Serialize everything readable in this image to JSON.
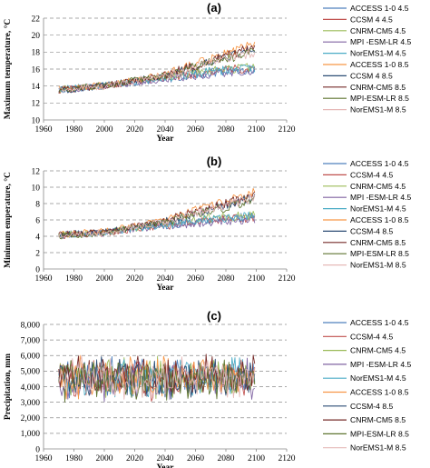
{
  "chart_data": [
    {
      "panel": "(a)",
      "type": "line",
      "title": "",
      "xlabel": "Year",
      "ylabel": "Maximum temperature, °C",
      "xlim": [
        1960,
        2120
      ],
      "ylim": [
        10,
        22
      ],
      "xticks": [
        1960,
        1980,
        2000,
        2020,
        2040,
        2060,
        2080,
        2100,
        2120
      ],
      "yticks": [
        10,
        12,
        14,
        16,
        18,
        20,
        22
      ],
      "y_format": "plain",
      "grid": "horizontal dashed",
      "legend_position": "right",
      "x_range_data": [
        1970,
        2099
      ],
      "series": [
        {
          "name": "ACCESS 1-0 4.5",
          "color": "#4f81bd",
          "keyframes": [
            [
              1970,
              13.6
            ],
            [
              2000,
              14.0
            ],
            [
              2040,
              14.9
            ],
            [
              2070,
              15.6
            ],
            [
              2099,
              16.0
            ]
          ]
        },
        {
          "name": "CCSM 4 4.5",
          "color": "#c0504d",
          "keyframes": [
            [
              1970,
              13.5
            ],
            [
              2000,
              14.0
            ],
            [
              2040,
              15.0
            ],
            [
              2070,
              15.7
            ],
            [
              2099,
              16.2
            ]
          ]
        },
        {
          "name": "CNRM-CM5 4.5",
          "color": "#9bbb59",
          "keyframes": [
            [
              1970,
              13.6
            ],
            [
              2000,
              14.0
            ],
            [
              2040,
              15.0
            ],
            [
              2070,
              15.8
            ],
            [
              2099,
              16.3
            ]
          ]
        },
        {
          "name": "MPI -ESM-LR 4.5",
          "color": "#8064a2",
          "keyframes": [
            [
              1970,
              13.5
            ],
            [
              2000,
              14.0
            ],
            [
              2040,
              14.8
            ],
            [
              2070,
              15.4
            ],
            [
              2099,
              15.8
            ]
          ]
        },
        {
          "name": "NorEMS1-M 4.5",
          "color": "#4bacc6",
          "keyframes": [
            [
              1970,
              13.6
            ],
            [
              2000,
              14.1
            ],
            [
              2040,
              15.0
            ],
            [
              2070,
              15.7
            ],
            [
              2099,
              16.1
            ]
          ]
        },
        {
          "name": "ACCESS 1-0  8.5",
          "color": "#f79646",
          "keyframes": [
            [
              1970,
              13.6
            ],
            [
              2000,
              14.1
            ],
            [
              2040,
              15.4
            ],
            [
              2070,
              17.2
            ],
            [
              2099,
              19.0
            ]
          ]
        },
        {
          "name": "CCSM 4 8.5",
          "color": "#2c4d75",
          "keyframes": [
            [
              1970,
              13.5
            ],
            [
              2000,
              14.0
            ],
            [
              2040,
              15.3
            ],
            [
              2070,
              16.8
            ],
            [
              2099,
              18.3
            ]
          ]
        },
        {
          "name": "CNRM-CM5 8.5",
          "color": "#772c2a",
          "keyframes": [
            [
              1970,
              13.5
            ],
            [
              2000,
              14.0
            ],
            [
              2040,
              15.3
            ],
            [
              2070,
              17.0
            ],
            [
              2099,
              18.6
            ]
          ]
        },
        {
          "name": "MPI-ESM-LR 8.5",
          "color": "#5f7530",
          "keyframes": [
            [
              1970,
              13.6
            ],
            [
              2000,
              14.1
            ],
            [
              2040,
              15.2
            ],
            [
              2070,
              16.8
            ],
            [
              2099,
              18.0
            ]
          ]
        },
        {
          "name": "NorEMS1-M 8.5",
          "color": "#e6b9b8",
          "keyframes": [
            [
              1970,
              13.6
            ],
            [
              2000,
              14.0
            ],
            [
              2040,
              15.2
            ],
            [
              2070,
              16.7
            ],
            [
              2099,
              18.0
            ]
          ]
        }
      ]
    },
    {
      "panel": "(b)",
      "type": "line",
      "title": "",
      "xlabel": "Year",
      "ylabel": "Minimum emperature, °C",
      "xlim": [
        1960,
        2120
      ],
      "ylim": [
        0,
        12
      ],
      "xticks": [
        1960,
        1980,
        2000,
        2020,
        2040,
        2060,
        2080,
        2100,
        2120
      ],
      "yticks": [
        0,
        2,
        4,
        6,
        8,
        10,
        12
      ],
      "y_format": "plain",
      "grid": "horizontal dashed",
      "legend_position": "right",
      "x_range_data": [
        1970,
        2099
      ],
      "series": [
        {
          "name": "ACCESS 1-0 4.5",
          "color": "#4f81bd",
          "keyframes": [
            [
              1970,
              4.2
            ],
            [
              2000,
              4.5
            ],
            [
              2040,
              5.4
            ],
            [
              2070,
              6.0
            ],
            [
              2099,
              6.4
            ]
          ]
        },
        {
          "name": "CCSM-4 4.5",
          "color": "#c0504d",
          "keyframes": [
            [
              1970,
              4.1
            ],
            [
              2000,
              4.4
            ],
            [
              2040,
              5.3
            ],
            [
              2070,
              5.9
            ],
            [
              2099,
              6.3
            ]
          ]
        },
        {
          "name": "CNRM-CM5 4.5",
          "color": "#9bbb59",
          "keyframes": [
            [
              1970,
              4.2
            ],
            [
              2000,
              4.5
            ],
            [
              2040,
              5.5
            ],
            [
              2070,
              6.2
            ],
            [
              2099,
              6.6
            ]
          ]
        },
        {
          "name": "MPI -ESM-LR 4.5",
          "color": "#8064a2",
          "keyframes": [
            [
              1970,
              4.0
            ],
            [
              2000,
              4.4
            ],
            [
              2040,
              5.2
            ],
            [
              2070,
              5.8
            ],
            [
              2099,
              6.1
            ]
          ]
        },
        {
          "name": "NorEMS1-M 4.5",
          "color": "#4bacc6",
          "keyframes": [
            [
              1970,
              4.1
            ],
            [
              2000,
              4.5
            ],
            [
              2040,
              5.4
            ],
            [
              2070,
              6.1
            ],
            [
              2099,
              6.5
            ]
          ]
        },
        {
          "name": "ACCESS 1-0  8.5",
          "color": "#f79646",
          "keyframes": [
            [
              1970,
              4.2
            ],
            [
              2000,
              4.6
            ],
            [
              2040,
              6.0
            ],
            [
              2070,
              7.7
            ],
            [
              2099,
              9.4
            ]
          ]
        },
        {
          "name": "CCSM-4 8.5",
          "color": "#2c4d75",
          "keyframes": [
            [
              1970,
              4.1
            ],
            [
              2000,
              4.5
            ],
            [
              2040,
              5.8
            ],
            [
              2070,
              7.3
            ],
            [
              2099,
              8.8
            ]
          ]
        },
        {
          "name": "CNRM-CM5 8.5",
          "color": "#772c2a",
          "keyframes": [
            [
              1970,
              4.2
            ],
            [
              2000,
              4.5
            ],
            [
              2040,
              5.9
            ],
            [
              2070,
              7.5
            ],
            [
              2099,
              9.0
            ]
          ]
        },
        {
          "name": "MPI-ESM-LR 8.5",
          "color": "#5f7530",
          "keyframes": [
            [
              1970,
              4.0
            ],
            [
              2000,
              4.4
            ],
            [
              2040,
              5.7
            ],
            [
              2070,
              7.1
            ],
            [
              2099,
              8.4
            ]
          ]
        },
        {
          "name": "NorEMS1-M 8.5",
          "color": "#e6b9b8",
          "keyframes": [
            [
              1970,
              4.1
            ],
            [
              2000,
              4.5
            ],
            [
              2040,
              5.8
            ],
            [
              2070,
              7.3
            ],
            [
              2099,
              8.7
            ]
          ]
        }
      ]
    },
    {
      "panel": "(c)",
      "type": "line",
      "title": "",
      "xlabel": "Year",
      "ylabel": "Precipitation, mm",
      "xlim": [
        1960,
        2120
      ],
      "ylim": [
        0,
        8000
      ],
      "xticks": [
        1960,
        1980,
        2000,
        2020,
        2040,
        2060,
        2080,
        2100,
        2120
      ],
      "yticks": [
        0,
        1000,
        2000,
        3000,
        4000,
        5000,
        6000,
        7000,
        8000
      ],
      "y_format": "thousands",
      "grid": "horizontal dashed",
      "legend_position": "right",
      "x_range_data": [
        1970,
        2099
      ],
      "series": [
        {
          "name": "ACCESS 1-0 4.5",
          "color": "#4f81bd",
          "keyframes": [
            [
              1970,
              4600
            ],
            [
              2099,
              4600
            ]
          ]
        },
        {
          "name": "CCSM-4 4.5",
          "color": "#c0504d",
          "keyframes": [
            [
              1970,
              4500
            ],
            [
              2099,
              4500
            ]
          ]
        },
        {
          "name": "CNRM-CM5 4.5",
          "color": "#9bbb59",
          "keyframes": [
            [
              1970,
              4700
            ],
            [
              2099,
              4700
            ]
          ]
        },
        {
          "name": "MPI -ESM-LR 4.5",
          "color": "#8064a2",
          "keyframes": [
            [
              1970,
              4400
            ],
            [
              2099,
              4400
            ]
          ]
        },
        {
          "name": "NorEMS1-M 4.5",
          "color": "#4bacc6",
          "keyframes": [
            [
              1970,
              4600
            ],
            [
              2099,
              4600
            ]
          ]
        },
        {
          "name": "ACCESS 1-0  8.5",
          "color": "#f79646",
          "keyframes": [
            [
              1970,
              4600
            ],
            [
              2099,
              4700
            ]
          ]
        },
        {
          "name": "CCSM-4 8.5",
          "color": "#2c4d75",
          "keyframes": [
            [
              1970,
              4500
            ],
            [
              2099,
              4500
            ]
          ]
        },
        {
          "name": "CNRM-CM5 8.5",
          "color": "#772c2a",
          "keyframes": [
            [
              1970,
              4700
            ],
            [
              2099,
              4800
            ]
          ]
        },
        {
          "name": "MPI-ESM-LR 8.5",
          "color": "#5f7530",
          "keyframes": [
            [
              1970,
              4400
            ],
            [
              2099,
              4400
            ]
          ]
        },
        {
          "name": "NorEMS1-M 8.5",
          "color": "#e6b9b8",
          "keyframes": [
            [
              1970,
              4600
            ],
            [
              2099,
              4600
            ]
          ]
        }
      ]
    }
  ]
}
